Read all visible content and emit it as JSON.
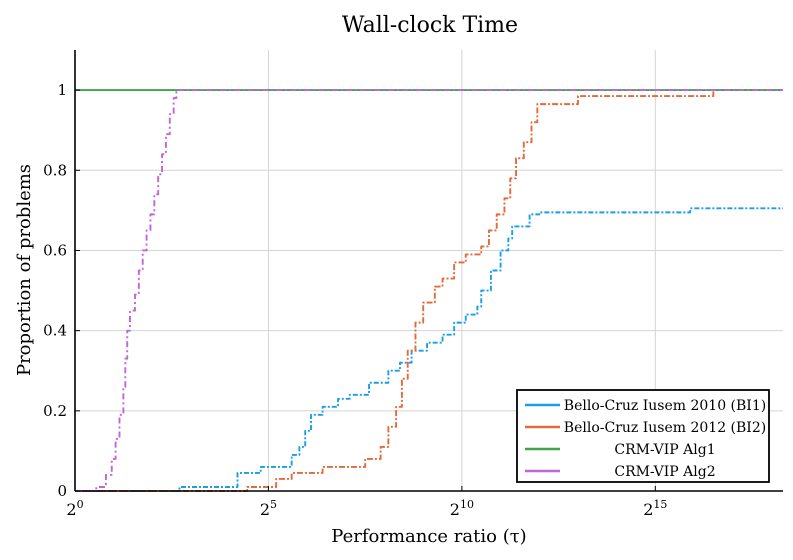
{
  "chart_data": {
    "type": "line",
    "title": "Wall-clock Time",
    "xlabel": "Performance ratio (τ)",
    "ylabel": "Proportion of problems",
    "x_scale": "log2",
    "xlim_log2": [
      0,
      18.3
    ],
    "ylim": [
      0,
      1.1
    ],
    "xticks": [
      {
        "exp": 0,
        "base": "2",
        "sup": "0"
      },
      {
        "exp": 5,
        "base": "2",
        "sup": "5"
      },
      {
        "exp": 10,
        "base": "2",
        "sup": "10"
      },
      {
        "exp": 15,
        "base": "2",
        "sup": "15"
      }
    ],
    "yticks": [
      {
        "value": 0,
        "label": "0"
      },
      {
        "value": 0.2,
        "label": "0.2"
      },
      {
        "value": 0.4,
        "label": "0.4"
      },
      {
        "value": 0.6,
        "label": "0.6"
      },
      {
        "value": 0.8,
        "label": "0.8"
      },
      {
        "value": 1,
        "label": "1"
      }
    ],
    "grid": true,
    "legend_position": "bottom-right",
    "series": [
      {
        "name": "Bello-Cruz Iusem 2010 (BI1)",
        "color": "#1a9fe6",
        "points_log2x": [
          [
            0,
            0
          ],
          [
            2.7,
            0
          ],
          [
            2.7,
            0.01
          ],
          [
            4.2,
            0.01
          ],
          [
            4.2,
            0.045
          ],
          [
            4.8,
            0.045
          ],
          [
            4.8,
            0.06
          ],
          [
            5.6,
            0.06
          ],
          [
            5.6,
            0.09
          ],
          [
            5.8,
            0.09
          ],
          [
            5.8,
            0.11
          ],
          [
            5.95,
            0.11
          ],
          [
            5.95,
            0.15
          ],
          [
            6.1,
            0.15
          ],
          [
            6.1,
            0.19
          ],
          [
            6.4,
            0.19
          ],
          [
            6.4,
            0.21
          ],
          [
            6.8,
            0.21
          ],
          [
            6.8,
            0.23
          ],
          [
            7.1,
            0.23
          ],
          [
            7.1,
            0.24
          ],
          [
            7.6,
            0.24
          ],
          [
            7.6,
            0.27
          ],
          [
            8.1,
            0.27
          ],
          [
            8.1,
            0.3
          ],
          [
            8.4,
            0.3
          ],
          [
            8.4,
            0.32
          ],
          [
            8.7,
            0.32
          ],
          [
            8.7,
            0.35
          ],
          [
            9.1,
            0.35
          ],
          [
            9.1,
            0.37
          ],
          [
            9.5,
            0.37
          ],
          [
            9.5,
            0.39
          ],
          [
            9.8,
            0.39
          ],
          [
            9.8,
            0.42
          ],
          [
            10.1,
            0.42
          ],
          [
            10.1,
            0.44
          ],
          [
            10.4,
            0.44
          ],
          [
            10.4,
            0.46
          ],
          [
            10.5,
            0.46
          ],
          [
            10.5,
            0.5
          ],
          [
            10.75,
            0.5
          ],
          [
            10.75,
            0.55
          ],
          [
            11.0,
            0.55
          ],
          [
            11.0,
            0.6
          ],
          [
            11.2,
            0.6
          ],
          [
            11.2,
            0.63
          ],
          [
            11.3,
            0.63
          ],
          [
            11.3,
            0.66
          ],
          [
            11.75,
            0.66
          ],
          [
            11.75,
            0.69
          ],
          [
            12.0,
            0.69
          ],
          [
            12.0,
            0.695
          ],
          [
            15.9,
            0.695
          ],
          [
            15.9,
            0.705
          ],
          [
            18.3,
            0.705
          ]
        ]
      },
      {
        "name": "Bello-Cruz Iusem 2012 (BI2)",
        "color": "#e26a3c",
        "points_log2x": [
          [
            0,
            0
          ],
          [
            4.45,
            0
          ],
          [
            4.45,
            0.01
          ],
          [
            5.2,
            0.01
          ],
          [
            5.2,
            0.03
          ],
          [
            5.6,
            0.03
          ],
          [
            5.6,
            0.045
          ],
          [
            6.4,
            0.045
          ],
          [
            6.4,
            0.06
          ],
          [
            7.5,
            0.06
          ],
          [
            7.5,
            0.08
          ],
          [
            7.9,
            0.08
          ],
          [
            7.9,
            0.11
          ],
          [
            8.1,
            0.11
          ],
          [
            8.1,
            0.16
          ],
          [
            8.3,
            0.16
          ],
          [
            8.3,
            0.21
          ],
          [
            8.45,
            0.21
          ],
          [
            8.45,
            0.28
          ],
          [
            8.6,
            0.28
          ],
          [
            8.6,
            0.35
          ],
          [
            8.8,
            0.35
          ],
          [
            8.8,
            0.42
          ],
          [
            9.0,
            0.42
          ],
          [
            9.0,
            0.47
          ],
          [
            9.3,
            0.47
          ],
          [
            9.3,
            0.51
          ],
          [
            9.5,
            0.51
          ],
          [
            9.5,
            0.53
          ],
          [
            9.8,
            0.53
          ],
          [
            9.8,
            0.57
          ],
          [
            10.1,
            0.57
          ],
          [
            10.1,
            0.59
          ],
          [
            10.5,
            0.59
          ],
          [
            10.5,
            0.61
          ],
          [
            10.7,
            0.61
          ],
          [
            10.7,
            0.65
          ],
          [
            10.9,
            0.65
          ],
          [
            10.9,
            0.69
          ],
          [
            11.1,
            0.69
          ],
          [
            11.1,
            0.73
          ],
          [
            11.25,
            0.73
          ],
          [
            11.25,
            0.78
          ],
          [
            11.4,
            0.78
          ],
          [
            11.4,
            0.83
          ],
          [
            11.6,
            0.83
          ],
          [
            11.6,
            0.87
          ],
          [
            11.8,
            0.87
          ],
          [
            11.8,
            0.92
          ],
          [
            11.95,
            0.92
          ],
          [
            11.95,
            0.965
          ],
          [
            13.0,
            0.965
          ],
          [
            13.0,
            0.985
          ],
          [
            16.5,
            0.985
          ],
          [
            16.5,
            1.0
          ],
          [
            18.3,
            1.0
          ]
        ]
      },
      {
        "name": "CRM-VIP Alg1",
        "color": "#3fa34d",
        "points_log2x": [
          [
            0,
            1.0
          ],
          [
            18.3,
            1.0
          ]
        ]
      },
      {
        "name": "CRM-VIP Alg2",
        "color": "#c066d6",
        "points_log2x": [
          [
            0,
            0
          ],
          [
            0.55,
            0
          ],
          [
            0.55,
            0.01
          ],
          [
            0.8,
            0.01
          ],
          [
            0.8,
            0.04
          ],
          [
            0.95,
            0.04
          ],
          [
            0.95,
            0.08
          ],
          [
            1.05,
            0.08
          ],
          [
            1.05,
            0.13
          ],
          [
            1.15,
            0.13
          ],
          [
            1.15,
            0.19
          ],
          [
            1.25,
            0.19
          ],
          [
            1.25,
            0.26
          ],
          [
            1.3,
            0.26
          ],
          [
            1.3,
            0.33
          ],
          [
            1.35,
            0.33
          ],
          [
            1.35,
            0.4
          ],
          [
            1.42,
            0.4
          ],
          [
            1.42,
            0.45
          ],
          [
            1.55,
            0.45
          ],
          [
            1.55,
            0.49
          ],
          [
            1.65,
            0.49
          ],
          [
            1.65,
            0.55
          ],
          [
            1.75,
            0.55
          ],
          [
            1.75,
            0.6
          ],
          [
            1.85,
            0.6
          ],
          [
            1.85,
            0.65
          ],
          [
            1.95,
            0.65
          ],
          [
            1.95,
            0.69
          ],
          [
            2.05,
            0.69
          ],
          [
            2.05,
            0.74
          ],
          [
            2.15,
            0.74
          ],
          [
            2.15,
            0.79
          ],
          [
            2.25,
            0.79
          ],
          [
            2.25,
            0.84
          ],
          [
            2.35,
            0.84
          ],
          [
            2.35,
            0.89
          ],
          [
            2.45,
            0.89
          ],
          [
            2.45,
            0.94
          ],
          [
            2.55,
            0.94
          ],
          [
            2.55,
            0.98
          ],
          [
            2.62,
            0.98
          ],
          [
            2.62,
            1.0
          ],
          [
            18.3,
            1.0
          ]
        ]
      }
    ]
  }
}
